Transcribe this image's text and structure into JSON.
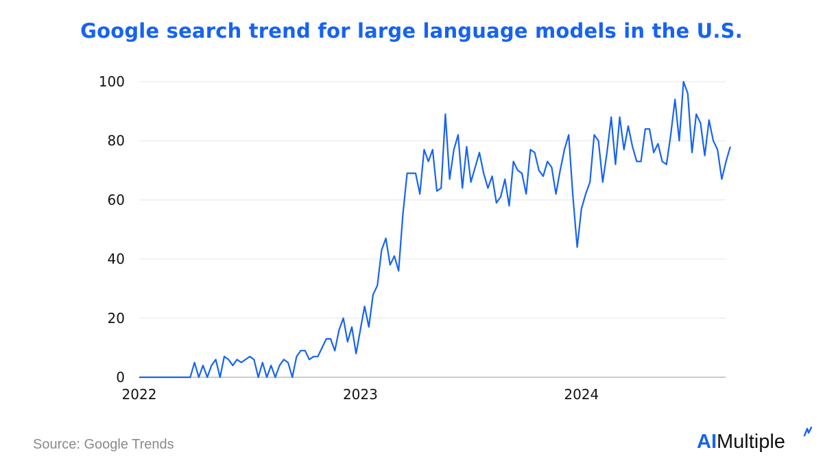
{
  "title": "Google search trend for large language models in the U.S.",
  "source": "Source: Google Trends",
  "logo": {
    "ai": "AI",
    "rest": "Multiple"
  },
  "colors": {
    "accent": "#1663f2",
    "line": "#1663f2",
    "grid": "#e4e4e4",
    "axis": "#aaaaaa",
    "text": "#111111",
    "source": "#8a8a8a"
  },
  "chart_data": {
    "type": "line",
    "title": "Google search trend for large language models in the U.S.",
    "xlabel": "",
    "ylabel": "",
    "ylim": [
      0,
      100
    ],
    "yticks": [
      0,
      20,
      40,
      60,
      80,
      100
    ],
    "xticks": [
      {
        "label": "2022",
        "week": 0
      },
      {
        "label": "2023",
        "week": 52
      },
      {
        "label": "2024",
        "week": 104
      }
    ],
    "grid": true,
    "legend": "none",
    "series": [
      {
        "values": [
          0,
          0,
          0,
          0,
          0,
          0,
          0,
          0,
          0,
          0,
          0,
          0,
          0,
          5,
          0,
          4,
          0,
          4,
          6,
          0,
          7,
          6,
          4,
          6,
          5,
          6,
          7,
          6,
          0,
          5,
          0,
          4,
          0,
          4,
          6,
          5,
          0,
          7,
          9,
          9,
          6,
          7,
          7,
          10,
          13,
          13,
          9,
          16,
          20,
          12,
          17,
          8,
          16,
          24,
          17,
          28,
          31,
          43,
          47,
          38,
          41,
          36,
          55,
          69,
          69,
          69,
          62,
          77,
          73,
          77,
          63,
          64,
          89,
          67,
          77,
          82,
          64,
          78,
          66,
          71,
          76,
          69,
          64,
          68,
          59,
          61,
          67,
          58,
          73,
          70,
          69,
          62,
          77,
          76,
          70,
          68,
          73,
          71,
          62,
          70,
          77,
          82,
          61,
          44,
          57,
          62,
          66,
          82,
          80,
          66,
          76,
          88,
          72,
          88,
          77,
          85,
          78,
          73,
          73,
          84,
          84,
          76,
          79,
          73,
          72,
          82,
          94,
          80,
          100,
          96,
          76,
          89,
          86,
          75,
          87,
          80,
          77,
          67,
          73,
          78
        ]
      }
    ]
  }
}
